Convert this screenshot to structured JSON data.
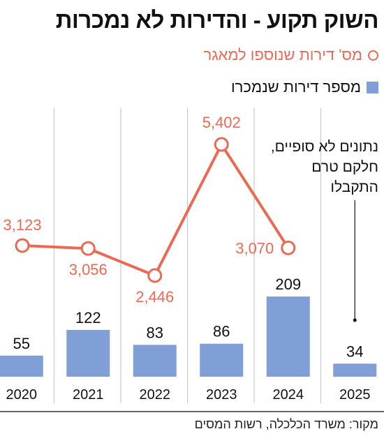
{
  "chart_data": {
    "type": "bar",
    "title": "השוק תקוע - והדירות לא נמכרות",
    "categories": [
      "2020",
      "2021",
      "2022",
      "2023",
      "2024",
      "2025"
    ],
    "series": [
      {
        "name": "מספר דירות שנמכרו",
        "type": "bar",
        "color": "#7f9fd6",
        "values": [
          55,
          122,
          83,
          86,
          209,
          34
        ],
        "labels": [
          "55",
          "122",
          "83",
          "86",
          "209",
          "34"
        ]
      },
      {
        "name": "מס' דירות שנוספו למאגר",
        "type": "line",
        "color": "#ea6a55",
        "values": [
          3123,
          3056,
          2446,
          5402,
          3070,
          null
        ],
        "labels": [
          "3,123",
          "3,056",
          "2,446",
          "5,402",
          "3,070",
          null
        ]
      }
    ],
    "annotation": "נתונים לא סופיים, חלקם טרם התקבלו",
    "source": "מקור: משרד הכלכלה, רשות המסים"
  }
}
